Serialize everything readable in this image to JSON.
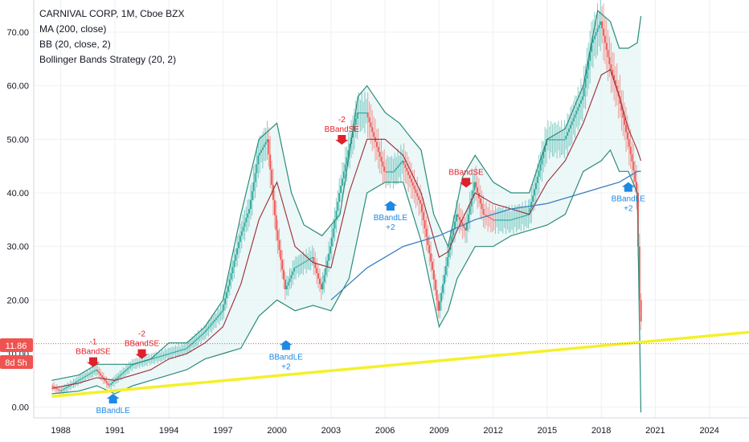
{
  "legend": {
    "symbol": "CARNIVAL CORP, 1M, Cboe BZX",
    "ma": "MA (200, close)",
    "bb": "BB (20, close, 2)",
    "strategy": "Bollinger Bands Strategy (20, 2)"
  },
  "price_badge": {
    "value": "11.86",
    "countdown": "8d 5h"
  },
  "colors": {
    "up": "#26a69a",
    "down": "#ef5350",
    "bb_band": "#2a8c7a",
    "bb_fill": "#e0f2f1",
    "bb_basis": "#9c2b34",
    "ma": "#3a7ec0",
    "trendline": "#f5f02a",
    "short_signal": "#e0202a",
    "long_signal": "#1e88e5",
    "badge": "#ef5350"
  },
  "chart_data": {
    "type": "line",
    "title": "CARNIVAL CORP, 1M, Cboe BZX",
    "xlim": [
      1986.5,
      2026.2
    ],
    "ylim": [
      -2,
      76
    ],
    "x_ticks": [
      1988,
      1991,
      1994,
      1997,
      2000,
      2003,
      2006,
      2009,
      2012,
      2015,
      2018,
      2021,
      2024
    ],
    "y_ticks": [
      0,
      10,
      20,
      30,
      40,
      50,
      60,
      70
    ],
    "y_tick_labels": [
      "0.00",
      "10.00",
      "20.00",
      "30.00",
      "40.00",
      "50.00",
      "60.00",
      "70.00"
    ],
    "last_price": 11.86,
    "price": {
      "x": [
        1987.5,
        1988,
        1989,
        1990,
        1990.7,
        1991,
        1992,
        1993,
        1994,
        1995,
        1996,
        1997,
        1998,
        1998.5,
        1999,
        1999.5,
        2000,
        2000.5,
        2001,
        2002,
        2002.5,
        2003,
        2003.5,
        2004,
        2004.5,
        2005,
        2006,
        2006.5,
        2007,
        2008,
        2008.7,
        2009,
        2009.5,
        2010,
        2010.5,
        2011,
        2011.5,
        2012,
        2013,
        2014,
        2014.5,
        2015,
        2016,
        2017,
        2017.5,
        2018,
        2018.5,
        2019,
        2019.5,
        2019.8,
        2020,
        2020.2
      ],
      "y": [
        4,
        3,
        5,
        7,
        4,
        5,
        8,
        9,
        10,
        11,
        14,
        18,
        32,
        37,
        47,
        50,
        33,
        22,
        26,
        28,
        22,
        30,
        40,
        48,
        55,
        55,
        44,
        44,
        46,
        38,
        25,
        18,
        28,
        36,
        33,
        42,
        36,
        35,
        35,
        36,
        43,
        50,
        50,
        58,
        68,
        72,
        64,
        58,
        50,
        45,
        40,
        16
      ]
    },
    "bb_upper": {
      "x": [
        1987.5,
        1989,
        1990,
        1991,
        1992,
        1993,
        1994,
        1995,
        1996,
        1997,
        1998,
        1999,
        2000,
        2000.8,
        2001.5,
        2002.5,
        2003.5,
        2004.5,
        2005,
        2006,
        2006.8,
        2007.5,
        2008,
        2008.7,
        2009.5,
        2010.3,
        2011,
        2012,
        2013,
        2014,
        2015,
        2016,
        2017,
        2017.8,
        2018.5,
        2019,
        2019.5,
        2020,
        2020.2
      ],
      "y": [
        5,
        6,
        8,
        8,
        8,
        9,
        12,
        12,
        15,
        20,
        36,
        50,
        53,
        40,
        34,
        32,
        36,
        58,
        60,
        55,
        53,
        50,
        48,
        36,
        30,
        43,
        47,
        42,
        40,
        40,
        50,
        52,
        60,
        74,
        72,
        67,
        67,
        68,
        73
      ]
    },
    "bb_basis": {
      "x": [
        1987.5,
        1989,
        1990,
        1991,
        1992,
        1993,
        1994,
        1995,
        1996,
        1997,
        1998,
        1999,
        2000,
        2001,
        2002,
        2003,
        2004,
        2005,
        2006,
        2007,
        2008,
        2009,
        2009.5,
        2010,
        2011,
        2012,
        2013,
        2014,
        2015,
        2016,
        2017,
        2018,
        2018.5,
        2019,
        2019.5,
        2020,
        2020.2
      ],
      "y": [
        3.5,
        4.5,
        5.5,
        5,
        6,
        7,
        9,
        10,
        12,
        15,
        23,
        35,
        42,
        30,
        27,
        26,
        40,
        50,
        50,
        47,
        40,
        28,
        29,
        33,
        40,
        38,
        37,
        36,
        42,
        46,
        53,
        62,
        63,
        58,
        52,
        48,
        46
      ]
    },
    "bb_lower": {
      "x": [
        1987.5,
        1989,
        1990,
        1991,
        1992,
        1993,
        1994,
        1995,
        1996,
        1997,
        1998,
        1999,
        2000,
        2001,
        2002,
        2003,
        2004,
        2005,
        2006,
        2007,
        2008,
        2009,
        2009.5,
        2010,
        2011,
        2012,
        2013,
        2014,
        2015,
        2016,
        2017,
        2018,
        2018.5,
        2019,
        2019.5,
        2020,
        2020.2
      ],
      "y": [
        2.5,
        3,
        4,
        2.5,
        4,
        5,
        6,
        7,
        9,
        10,
        11,
        17,
        20,
        18,
        19,
        18,
        24,
        40,
        42,
        42,
        31,
        15,
        18,
        24,
        30,
        30,
        32,
        33,
        34,
        36,
        44,
        46,
        48,
        44,
        44,
        40,
        -1
      ]
    },
    "ma_200": {
      "x": [
        2003,
        2005,
        2007,
        2009,
        2011,
        2013,
        2015,
        2017,
        2018,
        2019,
        2020,
        2020.2
      ],
      "y": [
        20,
        26,
        30,
        32,
        35,
        37,
        38,
        40,
        41,
        42,
        44,
        44
      ]
    },
    "trendline": {
      "x": [
        1987.5,
        2026.2
      ],
      "y": [
        2,
        14
      ]
    },
    "current_price_line": 11.86,
    "signals": [
      {
        "type": "short",
        "x": 1989.8,
        "y": 7.5,
        "label": "BBandSE",
        "qty": "-1"
      },
      {
        "type": "short",
        "x": 1992.5,
        "y": 9,
        "label": "BBandSE",
        "qty": "-2"
      },
      {
        "type": "long",
        "x": 1990.9,
        "y": 2.5,
        "label": "BBandLE",
        "qty": ""
      },
      {
        "type": "long",
        "x": 2000.5,
        "y": 12.5,
        "label": "BBandLE",
        "qty": "+2"
      },
      {
        "type": "short",
        "x": 2003.6,
        "y": 49,
        "label": "BBandSE",
        "qty": "-2"
      },
      {
        "type": "long",
        "x": 2006.3,
        "y": 38.5,
        "label": "BBandLE",
        "qty": "+2"
      },
      {
        "type": "short",
        "x": 2010.5,
        "y": 41,
        "label": "BBandSE",
        "qty": ""
      },
      {
        "type": "long",
        "x": 2019.5,
        "y": 42,
        "label": "BBandLE",
        "qty": "+2"
      }
    ]
  }
}
